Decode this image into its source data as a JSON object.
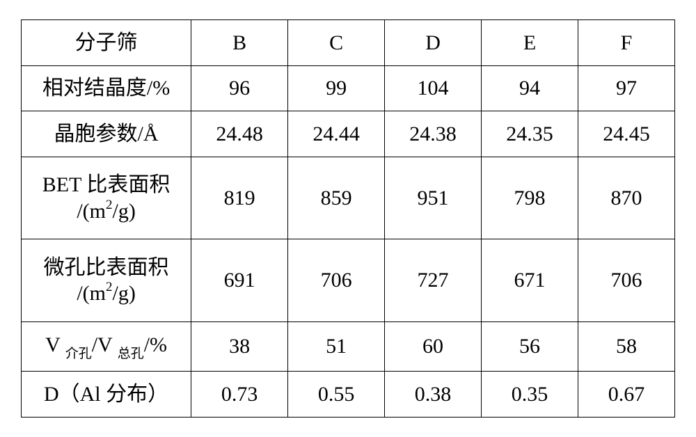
{
  "table": {
    "type": "table",
    "border_color": "#000000",
    "background_color": "#ffffff",
    "text_color": "#000000",
    "font_family": "SimSun / Times New Roman",
    "font_size_pt": 22,
    "sub_font_size_pt": 14,
    "columns": [
      "分子筛",
      "B",
      "C",
      "D",
      "E",
      "F"
    ],
    "column_widths_pct": [
      26,
      14.8,
      14.8,
      14.8,
      14.8,
      14.8
    ],
    "rows": [
      {
        "label_plain": "相对结晶度/%",
        "values": [
          "96",
          "99",
          "104",
          "94",
          "97"
        ]
      },
      {
        "label_plain": "晶胞参数/Å",
        "values": [
          "24.48",
          "24.44",
          "24.38",
          "24.35",
          "24.45"
        ]
      },
      {
        "label_plain": "BET 比表面积 /(m²/g)",
        "values": [
          "819",
          "859",
          "951",
          "798",
          "870"
        ]
      },
      {
        "label_plain": "微孔比表面积 /(m²/g)",
        "values": [
          "691",
          "706",
          "727",
          "671",
          "706"
        ]
      },
      {
        "label_plain": "V介孔/V总孔/%",
        "values": [
          "38",
          "51",
          "60",
          "56",
          "58"
        ]
      },
      {
        "label_plain": "D（Al 分布）",
        "values": [
          "0.73",
          "0.55",
          "0.38",
          "0.35",
          "0.67"
        ]
      }
    ],
    "labels": {
      "r0": "相对结晶度/%",
      "r1": "晶胞参数/Å",
      "r2_a": "BET 比表面积",
      "r2_b": "/(m",
      "r2_c": "/g)",
      "r3_a": "微孔比表面积",
      "r3_b": "/(m",
      "r3_c": "/g)",
      "r4_a": "V ",
      "r4_sub1": "介孔",
      "r4_b": "/V ",
      "r4_sub2": "总孔",
      "r4_c": "/%",
      "r5": "D（Al 分布）",
      "sup2": "2"
    }
  }
}
